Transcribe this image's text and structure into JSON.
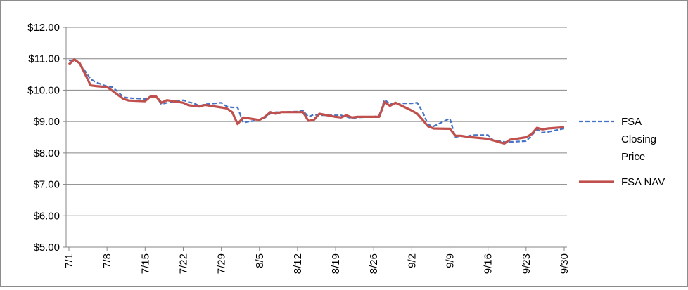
{
  "chart_data": {
    "type": "line",
    "title": "",
    "xlabel": "",
    "ylabel": "",
    "ylim": [
      5,
      12
    ],
    "yticks": [
      "$5.00",
      "$6.00",
      "$7.00",
      "$8.00",
      "$9.00",
      "$10.00",
      "$11.00",
      "$12.00"
    ],
    "xticks": [
      "7/1",
      "7/8",
      "7/15",
      "7/22",
      "7/29",
      "8/5",
      "8/12",
      "8/19",
      "8/26",
      "9/2",
      "9/9",
      "9/16",
      "9/23",
      "9/30"
    ],
    "grid": "horizontal",
    "legend": "right",
    "series": [
      {
        "name": "FSA Closing Price",
        "style": "dashed",
        "color": "#4472c4",
        "points": [
          [
            "7/1",
            10.95
          ],
          [
            "7/2",
            10.95
          ],
          [
            "7/3",
            10.85
          ],
          [
            "7/5",
            10.35
          ],
          [
            "7/6",
            10.25
          ],
          [
            "7/8",
            10.12
          ],
          [
            "7/9",
            10.1
          ],
          [
            "7/10",
            9.95
          ],
          [
            "7/11",
            9.78
          ],
          [
            "7/12",
            9.75
          ],
          [
            "7/15",
            9.72
          ],
          [
            "7/16",
            9.8
          ],
          [
            "7/17",
            9.8
          ],
          [
            "7/18",
            9.55
          ],
          [
            "7/19",
            9.6
          ],
          [
            "7/22",
            9.68
          ],
          [
            "7/23",
            9.62
          ],
          [
            "7/24",
            9.58
          ],
          [
            "7/25",
            9.5
          ],
          [
            "7/26",
            9.55
          ],
          [
            "7/29",
            9.6
          ],
          [
            "7/30",
            9.48
          ],
          [
            "7/31",
            9.45
          ],
          [
            "8/1",
            9.45
          ],
          [
            "8/2",
            8.97
          ],
          [
            "8/5",
            9.05
          ],
          [
            "8/6",
            9.12
          ],
          [
            "8/7",
            9.25
          ],
          [
            "8/8",
            9.3
          ],
          [
            "8/9",
            9.3
          ],
          [
            "8/12",
            9.32
          ],
          [
            "8/13",
            9.35
          ],
          [
            "8/14",
            9.15
          ],
          [
            "8/15",
            9.22
          ],
          [
            "8/16",
            9.2
          ],
          [
            "8/19",
            9.2
          ],
          [
            "8/20",
            9.2
          ],
          [
            "8/21",
            9.15
          ],
          [
            "8/22",
            9.1
          ],
          [
            "8/23",
            9.13
          ],
          [
            "8/26",
            9.15
          ],
          [
            "8/27",
            9.2
          ],
          [
            "8/28",
            9.7
          ],
          [
            "8/29",
            9.55
          ],
          [
            "8/30",
            9.58
          ],
          [
            "9/2",
            9.58
          ],
          [
            "9/3",
            9.6
          ],
          [
            "9/4",
            9.3
          ],
          [
            "9/5",
            8.9
          ],
          [
            "9/6",
            8.85
          ],
          [
            "9/9",
            9.1
          ],
          [
            "9/10",
            8.5
          ],
          [
            "9/11",
            8.55
          ],
          [
            "9/12",
            8.52
          ],
          [
            "9/13",
            8.57
          ],
          [
            "9/16",
            8.57
          ],
          [
            "9/17",
            8.4
          ],
          [
            "9/18",
            8.38
          ],
          [
            "9/19",
            8.35
          ],
          [
            "9/20",
            8.35
          ],
          [
            "9/23",
            8.38
          ],
          [
            "9/24",
            8.55
          ],
          [
            "9/25",
            8.75
          ],
          [
            "9/26",
            8.65
          ],
          [
            "9/27",
            8.67
          ],
          [
            "9/30",
            8.78
          ]
        ]
      },
      {
        "name": "FSA NAV",
        "style": "solid",
        "color": "#c0504d",
        "points": [
          [
            "7/1",
            10.82
          ],
          [
            "7/2",
            10.98
          ],
          [
            "7/3",
            10.85
          ],
          [
            "7/5",
            10.15
          ],
          [
            "7/6",
            10.13
          ],
          [
            "7/8",
            10.1
          ],
          [
            "7/9",
            9.98
          ],
          [
            "7/10",
            9.85
          ],
          [
            "7/11",
            9.72
          ],
          [
            "7/12",
            9.67
          ],
          [
            "7/15",
            9.65
          ],
          [
            "7/16",
            9.8
          ],
          [
            "7/17",
            9.8
          ],
          [
            "7/18",
            9.6
          ],
          [
            "7/19",
            9.68
          ],
          [
            "7/22",
            9.6
          ],
          [
            "7/23",
            9.52
          ],
          [
            "7/24",
            9.5
          ],
          [
            "7/25",
            9.48
          ],
          [
            "7/26",
            9.53
          ],
          [
            "7/29",
            9.45
          ],
          [
            "7/30",
            9.42
          ],
          [
            "7/31",
            9.3
          ],
          [
            "8/1",
            8.92
          ],
          [
            "8/2",
            9.13
          ],
          [
            "8/5",
            9.05
          ],
          [
            "8/6",
            9.15
          ],
          [
            "8/7",
            9.3
          ],
          [
            "8/8",
            9.25
          ],
          [
            "8/9",
            9.3
          ],
          [
            "8/12",
            9.3
          ],
          [
            "8/13",
            9.3
          ],
          [
            "8/14",
            9.02
          ],
          [
            "8/15",
            9.05
          ],
          [
            "8/16",
            9.25
          ],
          [
            "8/19",
            9.15
          ],
          [
            "8/20",
            9.13
          ],
          [
            "8/21",
            9.2
          ],
          [
            "8/22",
            9.13
          ],
          [
            "8/23",
            9.15
          ],
          [
            "8/26",
            9.15
          ],
          [
            "8/27",
            9.15
          ],
          [
            "8/28",
            9.62
          ],
          [
            "8/29",
            9.5
          ],
          [
            "8/30",
            9.6
          ],
          [
            "9/2",
            9.35
          ],
          [
            "9/3",
            9.25
          ],
          [
            "9/4",
            9.05
          ],
          [
            "9/5",
            8.85
          ],
          [
            "9/6",
            8.78
          ],
          [
            "9/9",
            8.77
          ],
          [
            "9/10",
            8.55
          ],
          [
            "9/11",
            8.55
          ],
          [
            "9/12",
            8.52
          ],
          [
            "9/13",
            8.5
          ],
          [
            "9/16",
            8.45
          ],
          [
            "9/17",
            8.4
          ],
          [
            "9/18",
            8.35
          ],
          [
            "9/19",
            8.3
          ],
          [
            "9/20",
            8.42
          ],
          [
            "9/23",
            8.5
          ],
          [
            "9/24",
            8.6
          ],
          [
            "9/25",
            8.8
          ],
          [
            "9/26",
            8.75
          ],
          [
            "9/27",
            8.78
          ],
          [
            "9/30",
            8.82
          ]
        ]
      }
    ]
  }
}
